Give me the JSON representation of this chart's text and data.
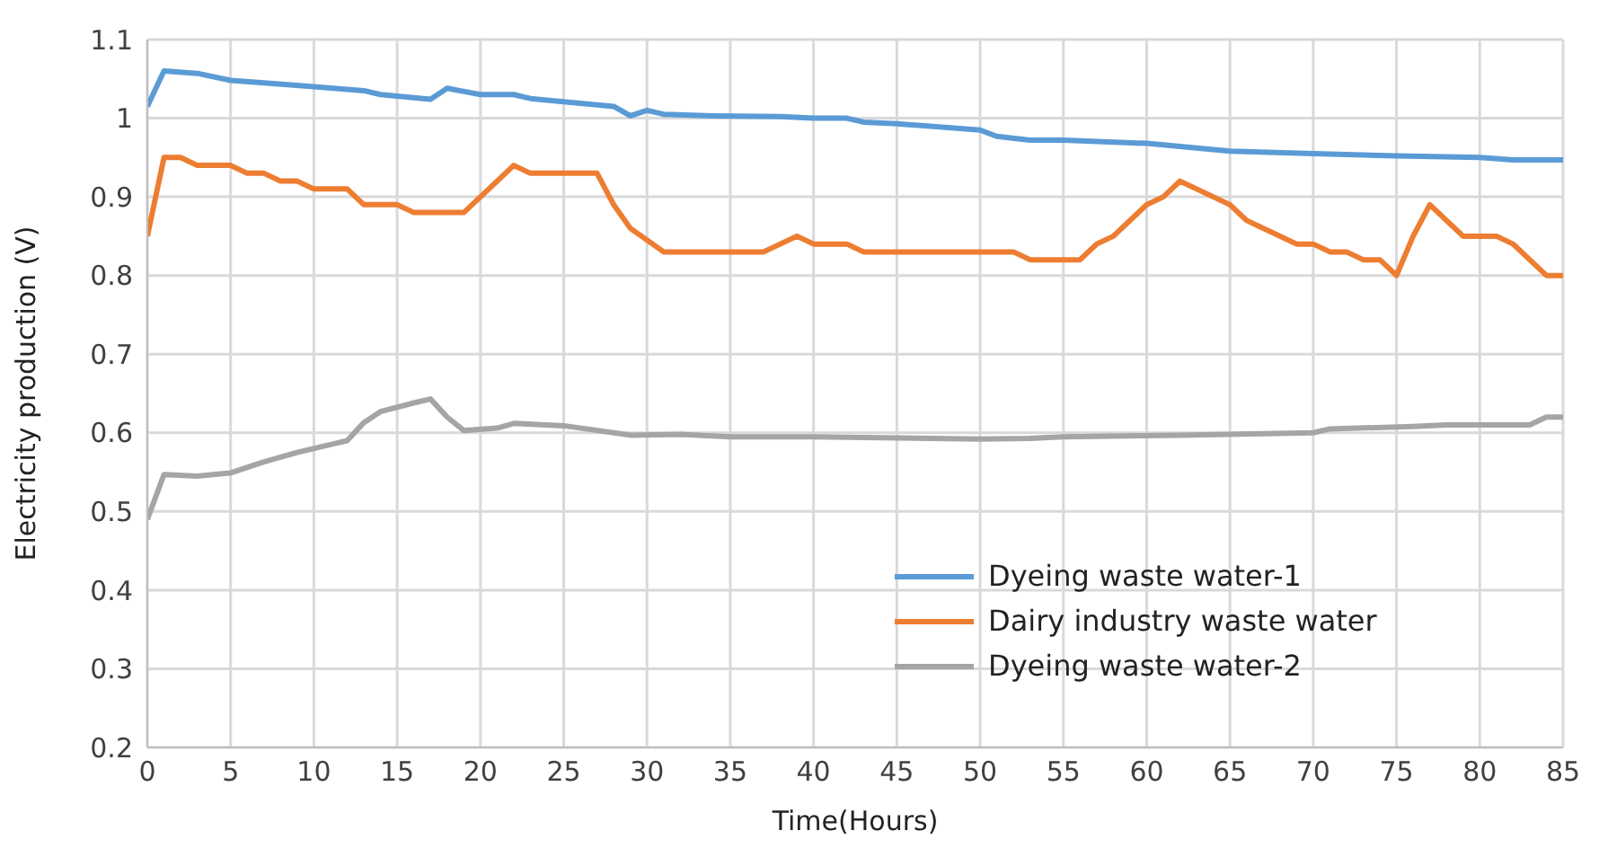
{
  "chart_data": {
    "type": "line",
    "xlabel": "Time(Hours)",
    "ylabel": "Electricity production (V)",
    "xlim": [
      0,
      85
    ],
    "xticks": [
      0,
      5,
      10,
      15,
      20,
      25,
      30,
      35,
      40,
      45,
      50,
      55,
      60,
      65,
      70,
      75,
      80,
      85
    ],
    "ylim": [
      0.2,
      1.1
    ],
    "yticks": [
      0.2,
      0.3,
      0.4,
      0.5,
      0.6,
      0.7,
      0.8,
      0.9,
      1,
      1.1
    ],
    "grid": true,
    "legend": "right",
    "marker": "none",
    "line_style": "solid",
    "series": [
      {
        "name": "Dyeing waste water-1",
        "color": "#5b9bd5",
        "x": [
          0,
          1,
          3,
          5,
          7,
          10,
          13,
          14,
          17,
          18,
          20,
          22,
          23,
          28,
          29,
          30,
          31,
          34,
          38,
          40,
          42,
          43,
          45,
          50,
          51,
          53,
          55,
          60,
          65,
          70,
          75,
          80,
          82,
          85
        ],
        "values": [
          1.015,
          1.06,
          1.057,
          1.048,
          1.045,
          1.04,
          1.035,
          1.03,
          1.024,
          1.038,
          1.03,
          1.03,
          1.025,
          1.015,
          1.003,
          1.01,
          1.005,
          1.003,
          1.002,
          1.0,
          1.0,
          0.995,
          0.993,
          0.985,
          0.977,
          0.972,
          0.972,
          0.968,
          0.958,
          0.955,
          0.952,
          0.95,
          0.947,
          0.947
        ]
      },
      {
        "name": "Dairy industry waste water",
        "color": "#ed7d31",
        "x": [
          0,
          1,
          2,
          3,
          5,
          6,
          7,
          8,
          9,
          10,
          12,
          13,
          15,
          16,
          19,
          22,
          23,
          27,
          28,
          29,
          31,
          37,
          39,
          40,
          42,
          43,
          52,
          53,
          56,
          57,
          58,
          60,
          61,
          62,
          65,
          66,
          69,
          70,
          71,
          72,
          73,
          74,
          75,
          76,
          77,
          79,
          81,
          82,
          84,
          85
        ],
        "values": [
          0.85,
          0.95,
          0.95,
          0.94,
          0.94,
          0.93,
          0.93,
          0.92,
          0.92,
          0.91,
          0.91,
          0.89,
          0.89,
          0.88,
          0.88,
          0.94,
          0.93,
          0.93,
          0.89,
          0.86,
          0.83,
          0.83,
          0.85,
          0.84,
          0.84,
          0.83,
          0.83,
          0.82,
          0.82,
          0.84,
          0.85,
          0.89,
          0.9,
          0.92,
          0.89,
          0.87,
          0.84,
          0.84,
          0.83,
          0.83,
          0.82,
          0.82,
          0.8,
          0.85,
          0.89,
          0.85,
          0.85,
          0.84,
          0.8,
          0.8
        ]
      },
      {
        "name": "Dyeing waste water-2",
        "color": "#a5a5a5",
        "x": [
          0,
          1,
          3,
          5,
          7,
          9,
          11,
          12,
          13,
          14,
          16,
          17,
          18,
          19,
          21,
          22,
          25,
          28,
          29,
          32,
          35,
          40,
          50,
          53,
          55,
          62,
          70,
          71,
          76,
          78,
          83,
          84,
          85
        ],
        "values": [
          0.49,
          0.547,
          0.545,
          0.549,
          0.563,
          0.575,
          0.585,
          0.59,
          0.613,
          0.627,
          0.638,
          0.643,
          0.62,
          0.603,
          0.606,
          0.612,
          0.609,
          0.6,
          0.597,
          0.598,
          0.595,
          0.595,
          0.592,
          0.593,
          0.595,
          0.597,
          0.6,
          0.605,
          0.608,
          0.61,
          0.61,
          0.62,
          0.62
        ]
      }
    ]
  }
}
